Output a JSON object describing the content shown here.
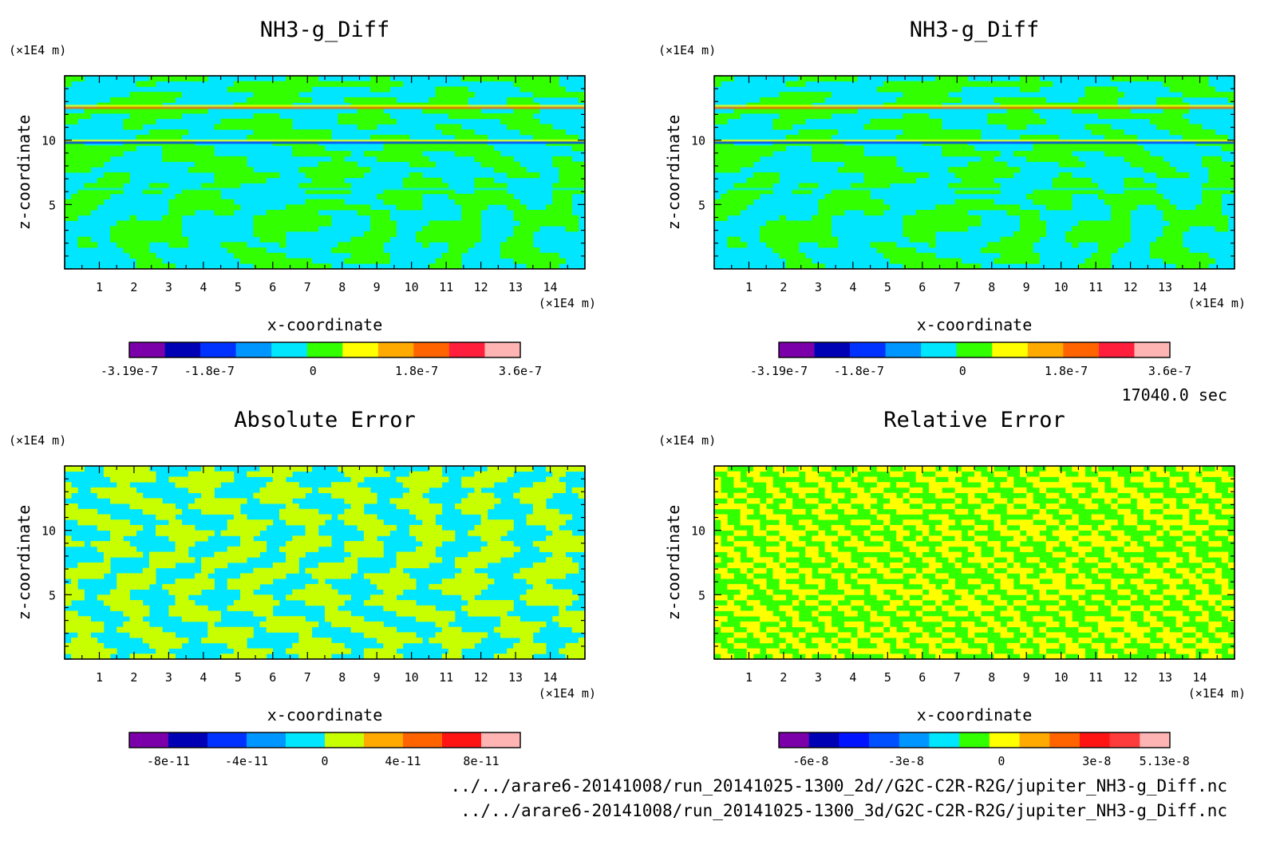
{
  "chart_data": [
    {
      "type": "heatmap",
      "title": "NH3-g_Diff",
      "xlabel": "x-coordinate",
      "ylabel": "z-coordinate",
      "x_unit": "(×1E4 m)",
      "y_unit": "(×1E4 m)",
      "x_ticks": [
        "1",
        "2",
        "3",
        "4",
        "5",
        "6",
        "7",
        "8",
        "9",
        "10",
        "11",
        "12",
        "13",
        "14"
      ],
      "y_ticks": [
        "5",
        "10"
      ],
      "xlim": [
        0,
        15
      ],
      "ylim": [
        0,
        15
      ],
      "colorbar": {
        "colors": [
          "#7b00aa",
          "#0000b4",
          "#0032ff",
          "#0096ff",
          "#00e6ff",
          "#32ff00",
          "#ffff00",
          "#ffaa00",
          "#ff6400",
          "#ff1e3c",
          "#ffb4b4"
        ],
        "tick_labels": [
          "-3.19e-7",
          "-1.8e-7",
          "0",
          "1.8e-7",
          "3.6e-7"
        ],
        "tick_values": [
          -3.19e-07,
          -1.8e-07,
          0,
          1.8e-07,
          3.6e-07
        ],
        "range": [
          -3.19e-07,
          3.6e-07
        ]
      }
    },
    {
      "type": "heatmap",
      "title": "NH3-g_Diff",
      "xlabel": "x-coordinate",
      "ylabel": "z-coordinate",
      "x_unit": "(×1E4 m)",
      "y_unit": "(×1E4 m)",
      "x_ticks": [
        "1",
        "2",
        "3",
        "4",
        "5",
        "6",
        "7",
        "8",
        "9",
        "10",
        "11",
        "12",
        "13",
        "14"
      ],
      "y_ticks": [
        "5",
        "10"
      ],
      "xlim": [
        0,
        15
      ],
      "ylim": [
        0,
        15
      ],
      "colorbar": {
        "colors": [
          "#7b00aa",
          "#0000b4",
          "#0032ff",
          "#0096ff",
          "#00e6ff",
          "#32ff00",
          "#ffff00",
          "#ffaa00",
          "#ff6400",
          "#ff1e3c",
          "#ffb4b4"
        ],
        "tick_labels": [
          "-3.19e-7",
          "-1.8e-7",
          "0",
          "1.8e-7",
          "3.6e-7"
        ],
        "tick_values": [
          -3.19e-07,
          -1.8e-07,
          0,
          1.8e-07,
          3.6e-07
        ],
        "range": [
          -3.19e-07,
          3.6e-07
        ]
      }
    },
    {
      "type": "heatmap",
      "title": "Absolute Error",
      "xlabel": "x-coordinate",
      "ylabel": "z-coordinate",
      "x_unit": "(×1E4 m)",
      "y_unit": "(×1E4 m)",
      "x_ticks": [
        "1",
        "2",
        "3",
        "4",
        "5",
        "6",
        "7",
        "8",
        "9",
        "10",
        "11",
        "12",
        "13",
        "14"
      ],
      "y_ticks": [
        "5",
        "10"
      ],
      "xlim": [
        0,
        15
      ],
      "ylim": [
        0,
        15
      ],
      "colorbar": {
        "colors": [
          "#7b00aa",
          "#0000b4",
          "#0032ff",
          "#0096ff",
          "#00e6ff",
          "#c8ff00",
          "#ffaa00",
          "#ff6400",
          "#ff1414",
          "#ffb4b4"
        ],
        "tick_labels": [
          "-8e-11",
          "-4e-11",
          "0",
          "4e-11",
          "8e-11"
        ],
        "tick_values": [
          -8e-11,
          -4e-11,
          0,
          4e-11,
          8e-11
        ],
        "range": [
          -1e-10,
          1e-10
        ]
      }
    },
    {
      "type": "heatmap",
      "title": "Relative Error",
      "xlabel": "x-coordinate",
      "ylabel": "z-coordinate",
      "x_unit": "(×1E4 m)",
      "y_unit": "(×1E4 m)",
      "x_ticks": [
        "1",
        "2",
        "3",
        "4",
        "5",
        "6",
        "7",
        "8",
        "9",
        "10",
        "11",
        "12",
        "13",
        "14"
      ],
      "y_ticks": [
        "5",
        "10"
      ],
      "xlim": [
        0,
        15
      ],
      "ylim": [
        0,
        15
      ],
      "colorbar": {
        "colors": [
          "#7b00aa",
          "#0000b4",
          "#0014ff",
          "#0050ff",
          "#0096ff",
          "#00e6ff",
          "#32ff00",
          "#ffff00",
          "#ffaa00",
          "#ff6400",
          "#ff1414",
          "#ff3c3c",
          "#ffb4b4"
        ],
        "tick_labels": [
          "-6e-8",
          "-3e-8",
          "0",
          "3e-8",
          "5.13e-8"
        ],
        "tick_values": [
          -6e-08,
          -3e-08,
          0,
          3e-08,
          5.13e-08
        ],
        "range": [
          -7e-08,
          5.3e-08
        ]
      }
    }
  ],
  "time_label": "17040.0 sec",
  "file_paths": [
    "../../arare6-20141008/run_20141025-1300_2d//G2C-C2R-R2G/jupiter_NH3-g_Diff.nc",
    "../../arare6-20141008/run_20141025-1300_3d/G2C-C2R-R2G/jupiter_NH3-g_Diff.nc"
  ]
}
